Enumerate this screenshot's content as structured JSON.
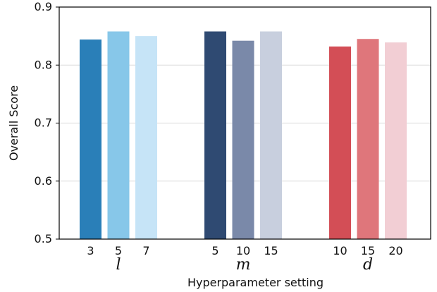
{
  "chart_data": {
    "type": "bar",
    "title": "",
    "xlabel": "Hyperparameter setting",
    "ylabel": "Overall Score",
    "ylim": [
      0.5,
      0.9
    ],
    "yticks": [
      "0.5",
      "0.6",
      "0.7",
      "0.8",
      "0.9"
    ],
    "grid": true,
    "legend": "none",
    "groups": [
      {
        "label": "l",
        "bars": [
          {
            "category": "3",
            "value": 0.844,
            "color": "#2a7fb8"
          },
          {
            "category": "5",
            "value": 0.858,
            "color": "#87c7e9"
          },
          {
            "category": "7",
            "value": 0.85,
            "color": "#c6e4f7"
          }
        ]
      },
      {
        "label": "m",
        "bars": [
          {
            "category": "5",
            "value": 0.858,
            "color": "#2f4a72"
          },
          {
            "category": "10",
            "value": 0.842,
            "color": "#7a89a9"
          },
          {
            "category": "15",
            "value": 0.858,
            "color": "#c8cfde"
          }
        ]
      },
      {
        "label": "d",
        "bars": [
          {
            "category": "10",
            "value": 0.832,
            "color": "#d34e56"
          },
          {
            "category": "15",
            "value": 0.845,
            "color": "#df767b"
          },
          {
            "category": "20",
            "value": 0.839,
            "color": "#f2ced4"
          }
        ]
      }
    ]
  }
}
